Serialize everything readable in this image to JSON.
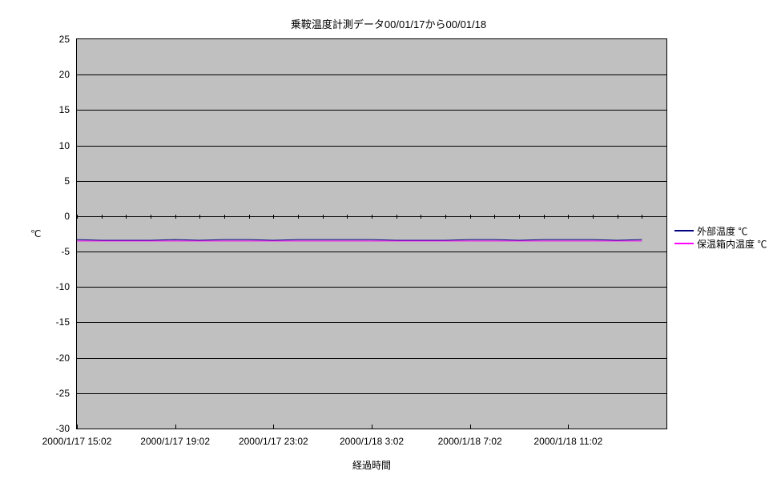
{
  "chart": {
    "type": "line",
    "title": "乗鞍温度計測データ00/01/17から00/01/18",
    "title_fontsize": 13,
    "background_color": "#ffffff",
    "plot_background_color": "#c0c0c0",
    "grid_color": "#000000",
    "plot_border_color": "#000000",
    "ylabel": "℃",
    "xlabel": "経過時間",
    "label_fontsize": 12,
    "ylim": [
      -30,
      25
    ],
    "ytick_step": 5,
    "yticks": [
      -30,
      -25,
      -20,
      -15,
      -10,
      -5,
      0,
      5,
      10,
      15,
      20,
      25
    ],
    "xlim": [
      0,
      24
    ],
    "xticks_positions": [
      0,
      4,
      8,
      12,
      16,
      20
    ],
    "xtick_labels": [
      "2000/1/17 15:02",
      "2000/1/17 19:02",
      "2000/1/17 23:02",
      "2000/1/18 3:02",
      "2000/1/18 7:02",
      "2000/1/18 11:02"
    ],
    "minor_xticks_per_major": 4,
    "legend": {
      "items": [
        {
          "label": "外部温度 ℃",
          "color": "#000080"
        },
        {
          "label": "保温箱内温度 ℃",
          "color": "#ff00ff"
        }
      ]
    },
    "series": [
      {
        "name": "外部温度 ℃",
        "color": "#000080",
        "line_width": 1,
        "x": [
          0,
          1,
          2,
          3,
          4,
          5,
          6,
          7,
          8,
          9,
          10,
          11,
          12,
          13,
          14,
          15,
          16,
          17,
          18,
          19,
          20,
          21,
          22,
          23
        ],
        "y": [
          -3.3,
          -3.4,
          -3.4,
          -3.4,
          -3.3,
          -3.4,
          -3.3,
          -3.3,
          -3.4,
          -3.3,
          -3.3,
          -3.3,
          -3.3,
          -3.4,
          -3.4,
          -3.4,
          -3.3,
          -3.3,
          -3.4,
          -3.3,
          -3.3,
          -3.3,
          -3.4,
          -3.3
        ]
      },
      {
        "name": "保温箱内温度 ℃",
        "color": "#ff00ff",
        "line_width": 1,
        "x": [
          0,
          1,
          2,
          3,
          4,
          5,
          6,
          7,
          8,
          9,
          10,
          11,
          12,
          13,
          14,
          15,
          16,
          17,
          18,
          19,
          20,
          21,
          22,
          23
        ],
        "y": [
          -3.5,
          -3.5,
          -3.5,
          -3.5,
          -3.5,
          -3.5,
          -3.5,
          -3.5,
          -3.5,
          -3.5,
          -3.5,
          -3.5,
          -3.5,
          -3.5,
          -3.5,
          -3.5,
          -3.5,
          -3.5,
          -3.5,
          -3.5,
          -3.5,
          -3.5,
          -3.5,
          -3.5
        ]
      }
    ]
  }
}
